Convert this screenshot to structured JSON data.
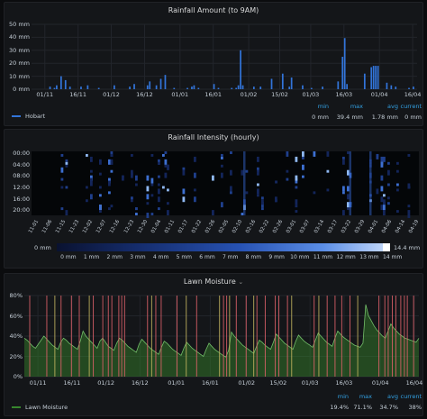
{
  "rain_panel": {
    "title": "Rainfall Amount (to 9AM)",
    "y_ticks": [
      "50 mm",
      "40 mm",
      "30 mm",
      "20 mm",
      "10 mm",
      "0 mm"
    ],
    "x_ticks": [
      "01/11",
      "16/11",
      "01/12",
      "16/12",
      "01/01",
      "16/01",
      "01/02",
      "15/02",
      "01/03",
      "16/03",
      "01/04",
      "16/04"
    ],
    "legend_name": "Hobart",
    "stat_headers": [
      "min",
      "max",
      "avg",
      "current"
    ],
    "stat_values": [
      "0 mm",
      "39.4 mm",
      "1.78 mm",
      "0 mm"
    ],
    "series_color": "#3274d9"
  },
  "intensity_panel": {
    "title": "Rainfall Intensity (hourly)",
    "y_ticks": [
      "00:00",
      "04:00",
      "08:00",
      "12:00",
      "16:00",
      "20:00"
    ],
    "x_ticks": [
      "11-01",
      "11-06",
      "11-15",
      "11-23",
      "12-02",
      "12-07",
      "12-16",
      "12-23",
      "12-30",
      "01-04",
      "01-11",
      "01-17",
      "01-22",
      "01-26",
      "02-05",
      "02-10",
      "02-16",
      "02-22",
      "02-26",
      "03-01",
      "03-07",
      "03-14",
      "03-17",
      "03-22",
      "03-29",
      "04-01",
      "04-06",
      "04-14",
      "04-19"
    ],
    "colorbar_min": "0 mm",
    "colorbar_max": "14.4 mm",
    "colorbar_labels": [
      "0 mm",
      "1 mm",
      "2 mm",
      "3 mm",
      "4 mm",
      "5 mm",
      "6 mm",
      "7 mm",
      "8 mm",
      "9 mm",
      "10 mm",
      "11 mm",
      "12 mm",
      "13 mm",
      "14 mm"
    ]
  },
  "moisture_panel": {
    "title": "Lawn Moisture",
    "title_caret": "⌄",
    "y_ticks": [
      "80%",
      "60%",
      "40%",
      "20%",
      "0%"
    ],
    "x_ticks": [
      "01/11",
      "16/11",
      "01/12",
      "16/12",
      "01/01",
      "16/01",
      "01/02",
      "15/02",
      "01/03",
      "16/03",
      "01/04",
      "16/04"
    ],
    "legend_name": "Lawn Moisture",
    "stat_headers": [
      "min",
      "max",
      "avg",
      "current"
    ],
    "stat_values": [
      "19.4%",
      "71.1%",
      "34.7%",
      "38%"
    ],
    "series_color": "#37872d",
    "annotation_color": "#e0626b"
  },
  "chart_data": [
    {
      "type": "bar",
      "title": "Rainfall Amount (to 9AM)",
      "ylim": [
        0,
        50
      ],
      "x_range": [
        "01/11",
        "22/04"
      ],
      "series": [
        {
          "name": "Hobart",
          "points": [
            [
              8,
              2
            ],
            [
              10,
              1
            ],
            [
              11,
              3
            ],
            [
              13,
              10
            ],
            [
              15,
              7
            ],
            [
              17,
              2
            ],
            [
              22,
              2
            ],
            [
              25,
              3
            ],
            [
              30,
              1
            ],
            [
              37,
              3
            ],
            [
              44,
              2
            ],
            [
              46,
              4
            ],
            [
              52,
              3
            ],
            [
              53,
              6
            ],
            [
              56,
              3
            ],
            [
              58,
              8
            ],
            [
              60,
              11
            ],
            [
              64,
              1
            ],
            [
              70,
              1
            ],
            [
              72,
              2
            ],
            [
              73,
              3
            ],
            [
              75,
              1
            ],
            [
              82,
              4
            ],
            [
              84,
              1
            ],
            [
              90,
              1
            ],
            [
              92,
              1
            ],
            [
              93,
              3
            ],
            [
              94,
              30
            ],
            [
              95,
              3
            ],
            [
              100,
              2
            ],
            [
              103,
              2
            ],
            [
              108,
              8
            ],
            [
              113,
              12
            ],
            [
              116,
              2
            ],
            [
              117,
              9
            ],
            [
              122,
              3
            ],
            [
              126,
              1
            ],
            [
              131,
              2
            ],
            [
              138,
              6
            ],
            [
              140,
              25
            ],
            [
              141,
              39.4
            ],
            [
              142,
              4
            ],
            [
              150,
              12
            ],
            [
              153,
              17
            ],
            [
              154,
              18
            ],
            [
              155,
              18
            ],
            [
              156,
              18
            ],
            [
              160,
              5
            ],
            [
              162,
              3
            ],
            [
              164,
              2
            ],
            [
              170,
              1
            ],
            [
              172,
              2
            ]
          ]
        }
      ]
    },
    {
      "type": "heatmap",
      "title": "Rainfall Intensity (hourly)",
      "y_range": [
        "00:00",
        "23:00"
      ],
      "color_range_mm": [
        0,
        14.4
      ]
    },
    {
      "type": "line",
      "title": "Lawn Moisture",
      "ylim": [
        0,
        80
      ],
      "series": [
        {
          "name": "Lawn Moisture",
          "values": [
            38,
            36,
            33,
            30,
            28,
            32,
            36,
            40,
            37,
            34,
            31,
            29,
            27,
            34,
            38,
            36,
            33,
            31,
            29,
            27,
            35,
            45,
            40,
            37,
            34,
            31,
            28,
            35,
            38,
            34,
            30,
            28,
            26,
            33,
            38,
            36,
            33,
            30,
            28,
            26,
            24,
            32,
            37,
            34,
            31,
            28,
            26,
            24,
            22,
            29,
            35,
            33,
            30,
            27,
            25,
            23,
            21,
            28,
            34,
            31,
            28,
            26,
            24,
            22,
            20,
            27,
            33,
            30,
            27,
            25,
            23,
            21,
            19.4,
            26,
            44,
            40,
            37,
            34,
            31,
            29,
            27,
            25,
            23,
            30,
            36,
            34,
            31,
            29,
            27,
            34,
            42,
            39,
            36,
            33,
            31,
            29,
            27,
            35,
            41,
            38,
            35,
            33,
            31,
            29,
            36,
            43,
            40,
            37,
            34,
            32,
            30,
            38,
            45,
            42,
            39,
            37,
            35,
            33,
            31,
            30,
            29,
            33,
            71.1,
            60,
            55,
            50,
            46,
            43,
            40,
            38,
            45,
            52,
            48,
            45,
            42,
            40,
            38,
            37,
            36,
            35,
            34,
            38
          ]
        }
      ]
    }
  ]
}
